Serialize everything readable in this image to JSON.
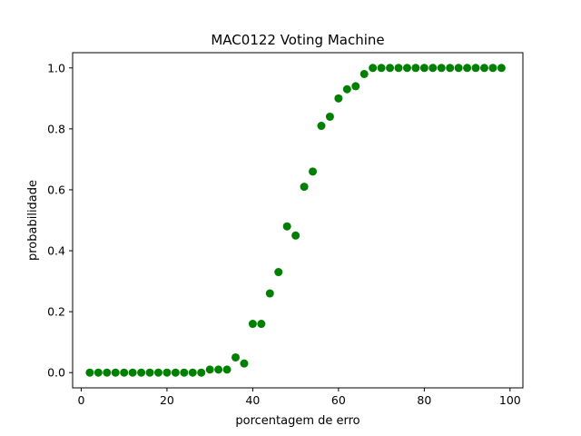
{
  "chart_data": {
    "type": "scatter",
    "title": "MAC0122 Voting Machine",
    "xlabel": "porcentagem de erro",
    "ylabel": "probabilidade",
    "xlim": [
      -2,
      103
    ],
    "ylim": [
      -0.05,
      1.05
    ],
    "xticks": [
      0,
      20,
      40,
      60,
      80,
      100
    ],
    "yticks": [
      0.0,
      0.2,
      0.4,
      0.6,
      0.8,
      1.0
    ],
    "xtick_labels": [
      "0",
      "20",
      "40",
      "60",
      "80",
      "100"
    ],
    "ytick_labels": [
      "0.0",
      "0.2",
      "0.4",
      "0.6",
      "0.8",
      "1.0"
    ],
    "grid": false,
    "marker_color": "#008000",
    "series": [
      {
        "x": [
          2,
          4,
          6,
          8,
          10,
          12,
          14,
          16,
          18,
          20,
          22,
          24,
          26,
          28,
          30,
          32,
          34,
          36,
          38,
          40,
          42,
          44,
          46,
          48,
          50,
          52,
          54,
          56,
          58,
          60,
          62,
          64,
          66,
          68,
          70,
          72,
          74,
          76,
          78,
          80,
          82,
          84,
          86,
          88,
          90,
          92,
          94,
          96,
          98
        ],
        "y": [
          0,
          0,
          0,
          0,
          0,
          0,
          0,
          0,
          0,
          0,
          0,
          0,
          0,
          0,
          0.01,
          0.01,
          0.01,
          0.05,
          0.03,
          0.16,
          0.16,
          0.26,
          0.33,
          0.48,
          0.45,
          0.61,
          0.66,
          0.81,
          0.84,
          0.9,
          0.93,
          0.94,
          0.98,
          1,
          1,
          1,
          1,
          1,
          1,
          1,
          1,
          1,
          1,
          1,
          1,
          1,
          1,
          1,
          1
        ]
      }
    ]
  }
}
